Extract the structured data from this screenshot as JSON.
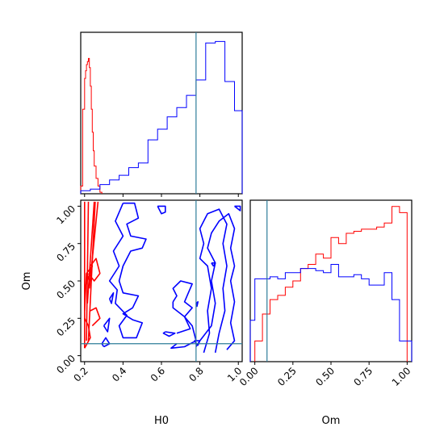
{
  "chart_data": {
    "type": "corner",
    "colors": {
      "series_a": "#ff0000",
      "series_b": "#0000ff",
      "truth": "#2e7d9a"
    },
    "truth": {
      "H0": 0.78,
      "Om": 0.08
    },
    "x_axis_label": "H0",
    "y_axis_label": "Om",
    "om_axis_label": "Om",
    "panels": [
      {
        "id": "H0-hist",
        "type": "histogram",
        "xlim": [
          0.18,
          1.02
        ],
        "ylim": [
          0,
          1.05
        ],
        "series": [
          {
            "color_key": "series_a",
            "edges": [
              0.18,
              0.19,
              0.2,
              0.205,
              0.21,
              0.215,
              0.22,
              0.225,
              0.23,
              0.235,
              0.24,
              0.245,
              0.25,
              0.26,
              0.27,
              0.28,
              0.29
            ],
            "values": [
              0.05,
              0.55,
              0.75,
              0.8,
              0.84,
              0.86,
              0.88,
              0.82,
              0.7,
              0.55,
              0.4,
              0.28,
              0.18,
              0.1,
              0.05,
              0.01
            ]
          },
          {
            "color_key": "series_b",
            "edges": [
              0.18,
              0.23,
              0.28,
              0.33,
              0.38,
              0.43,
              0.48,
              0.53,
              0.58,
              0.63,
              0.68,
              0.73,
              0.78,
              0.83,
              0.88,
              0.93,
              0.98,
              1.02
            ],
            "values": [
              0.02,
              0.03,
              0.06,
              0.09,
              0.12,
              0.17,
              0.2,
              0.35,
              0.42,
              0.5,
              0.56,
              0.64,
              0.74,
              0.98,
              0.99,
              0.73,
              0.54
            ]
          }
        ]
      },
      {
        "id": "Om-hist",
        "type": "histogram",
        "xlim": [
          -0.03,
          1.03
        ],
        "ylim": [
          0,
          0.78
        ],
        "series": [
          {
            "color_key": "series_a",
            "edges": [
              0.0,
              0.05,
              0.1,
              0.15,
              0.2,
              0.25,
              0.3,
              0.35,
              0.4,
              0.45,
              0.5,
              0.55,
              0.6,
              0.65,
              0.7,
              0.75,
              0.8,
              0.85,
              0.9,
              0.95,
              1.0
            ],
            "values": [
              0.1,
              0.23,
              0.3,
              0.32,
              0.36,
              0.39,
              0.45,
              0.47,
              0.52,
              0.5,
              0.6,
              0.57,
              0.62,
              0.63,
              0.64,
              0.64,
              0.65,
              0.67,
              0.75,
              0.72
            ]
          },
          {
            "color_key": "series_b",
            "edges": [
              -0.03,
              0.0,
              0.05,
              0.1,
              0.15,
              0.2,
              0.25,
              0.3,
              0.35,
              0.4,
              0.45,
              0.5,
              0.55,
              0.6,
              0.65,
              0.7,
              0.75,
              0.8,
              0.85,
              0.9,
              0.95,
              1.03
            ],
            "values": [
              0.2,
              0.4,
              0.4,
              0.41,
              0.4,
              0.43,
              0.43,
              0.45,
              0.45,
              0.44,
              0.43,
              0.47,
              0.41,
              0.41,
              0.42,
              0.4,
              0.37,
              0.37,
              0.43,
              0.3,
              0.1
            ]
          }
        ]
      },
      {
        "id": "H0-Om",
        "type": "contour",
        "xlim": [
          0.18,
          1.02
        ],
        "ylim": [
          -0.04,
          1.04
        ],
        "xticks": [
          "0.2",
          "0.4",
          "0.6",
          "0.8",
          "1.0"
        ],
        "xtick_values": [
          0.2,
          0.4,
          0.6,
          0.8,
          1.0
        ],
        "yticks": [
          "0.00",
          "0.25",
          "0.50",
          "0.75",
          "1.00"
        ],
        "ytick_values": [
          0.0,
          0.25,
          0.5,
          0.75,
          1.0
        ],
        "om_xticks": [
          "0.00",
          "0.25",
          "0.50",
          "0.75",
          "1.00"
        ],
        "om_xtick_values": [
          0.0,
          0.25,
          0.5,
          0.75,
          1.0
        ],
        "series": [
          {
            "color_key": "series_a",
            "contours": [
              [
                [
                  0.2,
                  0.05
                ],
                [
                  0.2,
                  1.03
                ]
              ],
              [
                [
                  0.21,
                  0.1
                ],
                [
                  0.22,
                  1.03
                ]
              ],
              [
                [
                  0.215,
                  0.35
                ],
                [
                  0.25,
                  1.03
                ]
              ],
              [
                [
                  0.22,
                  0.1
                ],
                [
                  0.255,
                  1.03
                ]
              ],
              [
                [
                  0.225,
                  0.45
                ],
                [
                  0.27,
                  1.03
                ]
              ],
              [
                [
                  0.2,
                  0.3
                ],
                [
                  0.21,
                  0.55
                ],
                [
                  0.24,
                  0.6
                ],
                [
                  0.2,
                  0.45
                ]
              ],
              [
                [
                  0.23,
                  0.6
                ],
                [
                  0.26,
                  0.65
                ],
                [
                  0.28,
                  0.55
                ],
                [
                  0.25,
                  0.5
                ],
                [
                  0.22,
                  0.55
                ]
              ],
              [
                [
                  0.2,
                  0.05
                ],
                [
                  0.23,
                  0.12
                ],
                [
                  0.22,
                  0.2
                ],
                [
                  0.2,
                  0.25
                ]
              ],
              [
                [
                  0.24,
                  0.2
                ],
                [
                  0.28,
                  0.25
                ],
                [
                  0.26,
                  0.32
                ],
                [
                  0.23,
                  0.3
                ]
              ]
            ]
          },
          {
            "color_key": "series_b",
            "contours": [
              [
                [
                  0.4,
                  1.02
                ],
                [
                  0.46,
                  1.02
                ],
                [
                  0.48,
                  0.92
                ],
                [
                  0.42,
                  0.88
                ],
                [
                  0.44,
                  0.8
                ],
                [
                  0.52,
                  0.78
                ],
                [
                  0.5,
                  0.72
                ],
                [
                  0.44,
                  0.7
                ],
                [
                  0.4,
                  0.6
                ],
                [
                  0.38,
                  0.5
                ],
                [
                  0.4,
                  0.42
                ],
                [
                  0.48,
                  0.4
                ],
                [
                  0.45,
                  0.32
                ],
                [
                  0.4,
                  0.28
                ],
                [
                  0.45,
                  0.24
                ],
                [
                  0.5,
                  0.22
                ],
                [
                  0.47,
                  0.12
                ],
                [
                  0.4,
                  0.12
                ],
                [
                  0.38,
                  0.2
                ],
                [
                  0.42,
                  0.27
                ],
                [
                  0.36,
                  0.35
                ],
                [
                  0.37,
                  0.44
                ],
                [
                  0.33,
                  0.5
                ],
                [
                  0.38,
                  0.6
                ],
                [
                  0.35,
                  0.7
                ],
                [
                  0.4,
                  0.8
                ],
                [
                  0.36,
                  0.9
                ],
                [
                  0.4,
                  1.02
                ]
              ],
              [
                [
                  0.58,
                  1.0
                ],
                [
                  0.62,
                  1.0
                ],
                [
                  0.62,
                  0.96
                ],
                [
                  0.6,
                  0.95
                ],
                [
                  0.58,
                  1.0
                ]
              ],
              [
                [
                  0.33,
                  0.38
                ],
                [
                  0.35,
                  0.42
                ],
                [
                  0.34,
                  0.35
                ],
                [
                  0.33,
                  0.38
                ]
              ],
              [
                [
                  0.3,
                  0.2
                ],
                [
                  0.33,
                  0.25
                ],
                [
                  0.32,
                  0.16
                ],
                [
                  0.3,
                  0.2
                ]
              ],
              [
                [
                  0.3,
                  0.06
                ],
                [
                  0.33,
                  0.08
                ],
                [
                  0.31,
                  0.12
                ],
                [
                  0.29,
                  0.08
                ],
                [
                  0.3,
                  0.06
                ]
              ],
              [
                [
                  0.62,
                  0.16
                ],
                [
                  0.67,
                  0.15
                ],
                [
                  0.64,
                  0.13
                ],
                [
                  0.61,
                  0.15
                ],
                [
                  0.62,
                  0.16
                ]
              ],
              [
                [
                  0.66,
                  0.36
                ],
                [
                  0.68,
                  0.4
                ],
                [
                  0.66,
                  0.45
                ],
                [
                  0.7,
                  0.5
                ],
                [
                  0.76,
                  0.48
                ],
                [
                  0.74,
                  0.42
                ],
                [
                  0.72,
                  0.36
                ],
                [
                  0.76,
                  0.32
                ],
                [
                  0.72,
                  0.26
                ],
                [
                  0.66,
                  0.32
                ],
                [
                  0.66,
                  0.36
                ]
              ],
              [
                [
                  0.68,
                  0.15
                ],
                [
                  0.75,
                  0.18
                ],
                [
                  0.72,
                  0.26
                ],
                [
                  0.76,
                  0.2
                ],
                [
                  0.78,
                  0.1
                ],
                [
                  0.72,
                  0.06
                ],
                [
                  0.65,
                  0.05
                ],
                [
                  0.68,
                  0.08
                ]
              ],
              [
                [
                  0.82,
                  0.02
                ],
                [
                  0.85,
                  0.15
                ],
                [
                  0.84,
                  0.3
                ],
                [
                  0.86,
                  0.45
                ],
                [
                  0.84,
                  0.6
                ],
                [
                  0.8,
                  0.65
                ],
                [
                  0.82,
                  0.75
                ],
                [
                  0.8,
                  0.85
                ],
                [
                  0.84,
                  0.95
                ],
                [
                  0.9,
                  0.98
                ],
                [
                  0.94,
                  0.88
                ],
                [
                  0.92,
                  0.75
                ],
                [
                  0.94,
                  0.6
                ],
                [
                  0.92,
                  0.45
                ],
                [
                  0.93,
                  0.3
                ],
                [
                  0.9,
                  0.15
                ],
                [
                  0.88,
                  0.02
                ]
              ],
              [
                [
                  0.78,
                  0.06
                ],
                [
                  0.8,
                  0.1
                ],
                [
                  0.86,
                  0.2
                ],
                [
                  0.88,
                  0.35
                ],
                [
                  0.86,
                  0.5
                ],
                [
                  0.88,
                  0.62
                ],
                [
                  0.84,
                  0.72
                ],
                [
                  0.86,
                  0.82
                ],
                [
                  0.9,
                  0.9
                ],
                [
                  0.95,
                  0.95
                ],
                [
                  0.98,
                  0.85
                ],
                [
                  0.96,
                  0.72
                ],
                [
                  0.98,
                  0.6
                ],
                [
                  0.96,
                  0.5
                ],
                [
                  0.98,
                  0.36
                ],
                [
                  0.96,
                  0.22
                ],
                [
                  0.98,
                  0.1
                ],
                [
                  0.94,
                  0.04
                ]
              ],
              [
                [
                  0.98,
                  1.0
                ],
                [
                  1.01,
                  1.0
                ],
                [
                  1.01,
                  0.97
                ],
                [
                  0.98,
                  1.0
                ]
              ],
              [
                [
                  0.77,
                  0.1
                ],
                [
                  0.8,
                  0.1
                ],
                [
                  0.79,
                  0.07
                ],
                [
                  0.77,
                  0.1
                ]
              ],
              [
                [
                  0.78,
                  0.35
                ],
                [
                  0.79,
                  0.36
                ],
                [
                  0.785,
                  0.33
                ],
                [
                  0.78,
                  0.35
                ]
              ],
              [
                [
                  0.86,
                  0.62
                ],
                [
                  0.88,
                  0.62
                ],
                [
                  0.87,
                  0.6
                ],
                [
                  0.86,
                  0.62
                ]
              ]
            ]
          }
        ]
      }
    ]
  }
}
